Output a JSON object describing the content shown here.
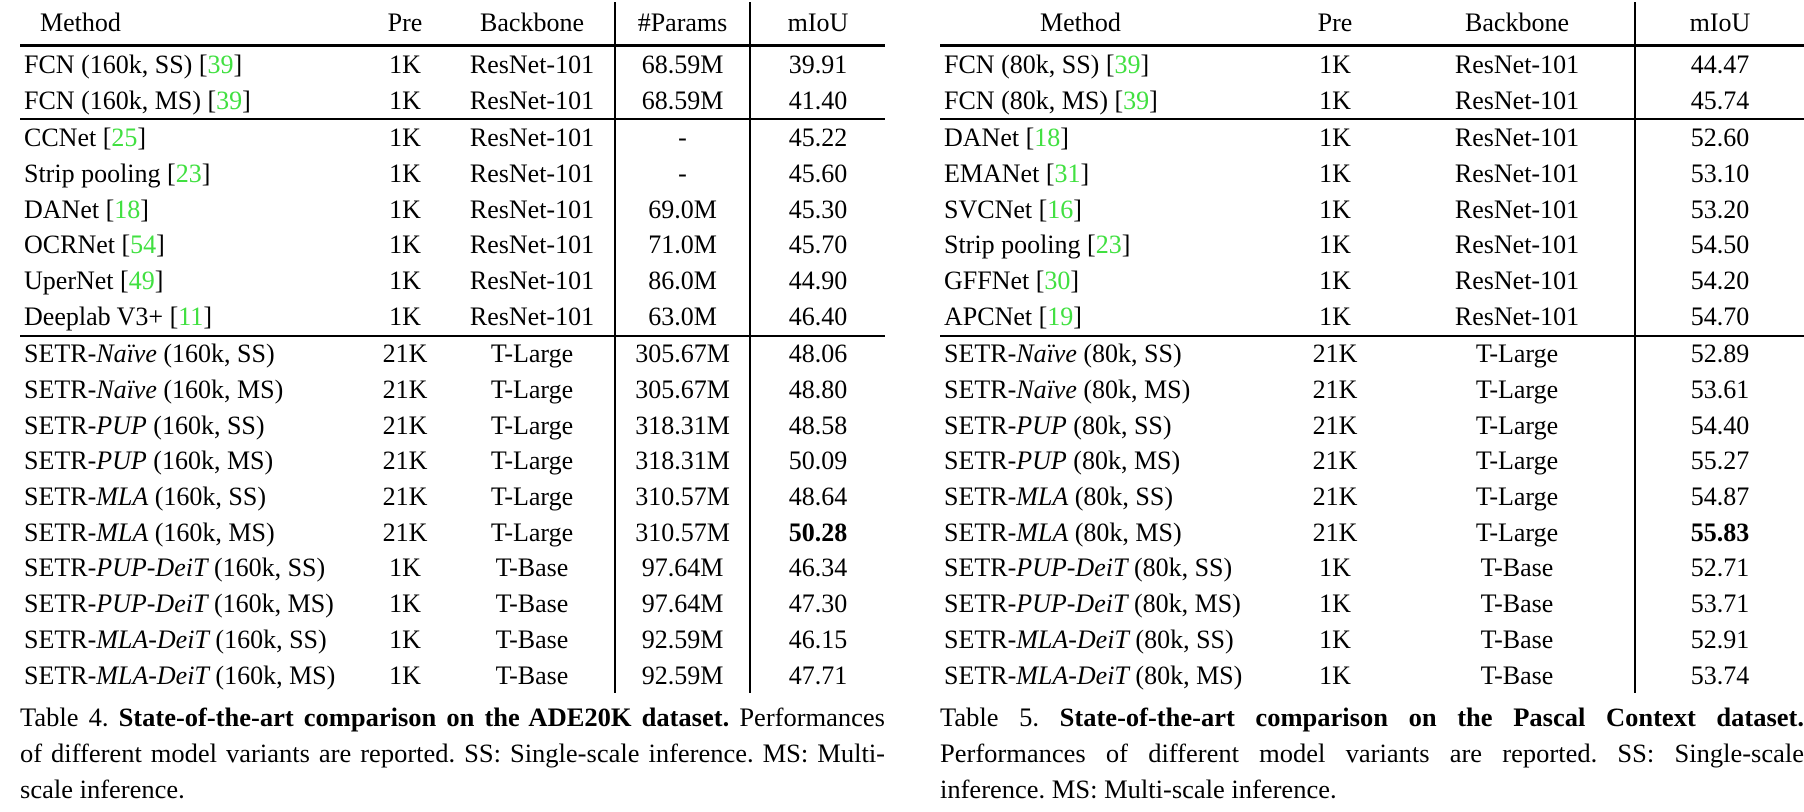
{
  "colors": {
    "citation_green": "#41e041",
    "text": "#000000",
    "background": "#ffffff"
  },
  "table4": {
    "header": {
      "method": "Method",
      "pre": "Pre",
      "backbone": "Backbone",
      "params": "#Params",
      "miou": "mIoU"
    },
    "rows": [
      {
        "m1": "FCN (160k, SS) ",
        "m2": "",
        "m3": "",
        "cite": "39",
        "pre": "1K",
        "backbone": "ResNet-101",
        "params": "68.59M",
        "miou": "39.91",
        "sep": false,
        "bold": false
      },
      {
        "m1": "FCN (160k, MS) ",
        "m2": "",
        "m3": "",
        "cite": "39",
        "pre": "1K",
        "backbone": "ResNet-101",
        "params": "68.59M",
        "miou": "41.40",
        "sep": false,
        "bold": false
      },
      {
        "m1": "CCNet ",
        "m2": "",
        "m3": "",
        "cite": "25",
        "pre": "1K",
        "backbone": "ResNet-101",
        "params": "-",
        "miou": "45.22",
        "sep": true,
        "bold": false
      },
      {
        "m1": "Strip pooling ",
        "m2": "",
        "m3": "",
        "cite": "23",
        "pre": "1K",
        "backbone": "ResNet-101",
        "params": "-",
        "miou": "45.60",
        "sep": false,
        "bold": false
      },
      {
        "m1": "DANet ",
        "m2": "",
        "m3": "",
        "cite": "18",
        "pre": "1K",
        "backbone": "ResNet-101",
        "params": "69.0M",
        "miou": "45.30",
        "sep": false,
        "bold": false
      },
      {
        "m1": "OCRNet ",
        "m2": "",
        "m3": "",
        "cite": "54",
        "pre": "1K",
        "backbone": "ResNet-101",
        "params": "71.0M",
        "miou": "45.70",
        "sep": false,
        "bold": false
      },
      {
        "m1": "UperNet ",
        "m2": "",
        "m3": "",
        "cite": "49",
        "pre": "1K",
        "backbone": "ResNet-101",
        "params": "86.0M",
        "miou": "44.90",
        "sep": false,
        "bold": false
      },
      {
        "m1": "Deeplab V3+ ",
        "m2": "",
        "m3": "",
        "cite": "11",
        "pre": "1K",
        "backbone": "ResNet-101",
        "params": "63.0M",
        "miou": "46.40",
        "sep": false,
        "bold": false
      },
      {
        "m1": "SETR-",
        "m2": "Naïve",
        "m3": " (160k, SS)",
        "cite": "",
        "pre": "21K",
        "backbone": "T-Large",
        "params": "305.67M",
        "miou": "48.06",
        "sep": true,
        "bold": false
      },
      {
        "m1": "SETR-",
        "m2": "Naïve",
        "m3": " (160k, MS)",
        "cite": "",
        "pre": "21K",
        "backbone": "T-Large",
        "params": "305.67M",
        "miou": "48.80",
        "sep": false,
        "bold": false
      },
      {
        "m1": "SETR-",
        "m2": "PUP",
        "m3": " (160k, SS)",
        "cite": "",
        "pre": "21K",
        "backbone": "T-Large",
        "params": "318.31M",
        "miou": "48.58",
        "sep": false,
        "bold": false
      },
      {
        "m1": "SETR-",
        "m2": "PUP",
        "m3": " (160k, MS)",
        "cite": "",
        "pre": "21K",
        "backbone": "T-Large",
        "params": "318.31M",
        "miou": "50.09",
        "sep": false,
        "bold": false
      },
      {
        "m1": "SETR-",
        "m2": "MLA",
        "m3": " (160k, SS)",
        "cite": "",
        "pre": "21K",
        "backbone": "T-Large",
        "params": "310.57M",
        "miou": "48.64",
        "sep": false,
        "bold": false
      },
      {
        "m1": "SETR-",
        "m2": "MLA",
        "m3": " (160k, MS)",
        "cite": "",
        "pre": "21K",
        "backbone": "T-Large",
        "params": "310.57M",
        "miou": "50.28",
        "sep": false,
        "bold": true
      },
      {
        "m1": "SETR-",
        "m2": "PUP-DeiT",
        "m3": " (160k, SS)",
        "cite": "",
        "pre": "1K",
        "backbone": "T-Base",
        "params": "97.64M",
        "miou": "46.34",
        "sep": false,
        "bold": false
      },
      {
        "m1": "SETR-",
        "m2": "PUP-DeiT",
        "m3": " (160k, MS)",
        "cite": "",
        "pre": "1K",
        "backbone": "T-Base",
        "params": "97.64M",
        "miou": "47.30",
        "sep": false,
        "bold": false
      },
      {
        "m1": "SETR-",
        "m2": "MLA-DeiT",
        "m3": " (160k, SS)",
        "cite": "",
        "pre": "1K",
        "backbone": "T-Base",
        "params": "92.59M",
        "miou": "46.15",
        "sep": false,
        "bold": false
      },
      {
        "m1": "SETR-",
        "m2": "MLA-DeiT",
        "m3": " (160k, MS)",
        "cite": "",
        "pre": "1K",
        "backbone": "T-Base",
        "params": "92.59M",
        "miou": "47.71",
        "sep": false,
        "bold": false
      }
    ],
    "caption": {
      "label": "Table 4.",
      "bold": "State-of-the-art comparison on the ADE20K dataset.",
      "rest": "Performances of different model variants are reported. SS: Single-scale inference. MS: Multi-scale inference."
    }
  },
  "table5": {
    "header": {
      "method": "Method",
      "pre": "Pre",
      "backbone": "Backbone",
      "miou": "mIoU"
    },
    "rows": [
      {
        "m1": "FCN (80k, SS) ",
        "m2": "",
        "m3": "",
        "cite": "39",
        "pre": "1K",
        "backbone": "ResNet-101",
        "miou": "44.47",
        "sep": false,
        "bold": false
      },
      {
        "m1": "FCN (80k, MS) ",
        "m2": "",
        "m3": "",
        "cite": "39",
        "pre": "1K",
        "backbone": "ResNet-101",
        "miou": "45.74",
        "sep": false,
        "bold": false
      },
      {
        "m1": "DANet ",
        "m2": "",
        "m3": "",
        "cite": "18",
        "pre": "1K",
        "backbone": "ResNet-101",
        "miou": "52.60",
        "sep": true,
        "bold": false
      },
      {
        "m1": "EMANet ",
        "m2": "",
        "m3": "",
        "cite": "31",
        "pre": "1K",
        "backbone": "ResNet-101",
        "miou": "53.10",
        "sep": false,
        "bold": false
      },
      {
        "m1": "SVCNet ",
        "m2": "",
        "m3": "",
        "cite": "16",
        "pre": "1K",
        "backbone": "ResNet-101",
        "miou": "53.20",
        "sep": false,
        "bold": false
      },
      {
        "m1": "Strip pooling ",
        "m2": "",
        "m3": "",
        "cite": "23",
        "pre": "1K",
        "backbone": "ResNet-101",
        "miou": "54.50",
        "sep": false,
        "bold": false
      },
      {
        "m1": "GFFNet ",
        "m2": "",
        "m3": "",
        "cite": "30",
        "pre": "1K",
        "backbone": "ResNet-101",
        "miou": "54.20",
        "sep": false,
        "bold": false
      },
      {
        "m1": "APCNet ",
        "m2": "",
        "m3": "",
        "cite": "19",
        "pre": "1K",
        "backbone": "ResNet-101",
        "miou": "54.70",
        "sep": false,
        "bold": false
      },
      {
        "m1": "SETR-",
        "m2": "Naïve",
        "m3": " (80k, SS)",
        "cite": "",
        "pre": "21K",
        "backbone": "T-Large",
        "miou": "52.89",
        "sep": true,
        "bold": false
      },
      {
        "m1": "SETR-",
        "m2": "Naïve",
        "m3": " (80k, MS)",
        "cite": "",
        "pre": "21K",
        "backbone": "T-Large",
        "miou": "53.61",
        "sep": false,
        "bold": false
      },
      {
        "m1": "SETR-",
        "m2": "PUP",
        "m3": " (80k, SS)",
        "cite": "",
        "pre": "21K",
        "backbone": "T-Large",
        "miou": "54.40",
        "sep": false,
        "bold": false
      },
      {
        "m1": "SETR-",
        "m2": "PUP",
        "m3": " (80k, MS)",
        "cite": "",
        "pre": "21K",
        "backbone": "T-Large",
        "miou": "55.27",
        "sep": false,
        "bold": false
      },
      {
        "m1": "SETR-",
        "m2": "MLA",
        "m3": " (80k, SS)",
        "cite": "",
        "pre": "21K",
        "backbone": "T-Large",
        "miou": "54.87",
        "sep": false,
        "bold": false
      },
      {
        "m1": "SETR-",
        "m2": "MLA",
        "m3": " (80k, MS)",
        "cite": "",
        "pre": "21K",
        "backbone": "T-Large",
        "miou": "55.83",
        "sep": false,
        "bold": true
      },
      {
        "m1": "SETR-",
        "m2": "PUP-DeiT",
        "m3": " (80k, SS)",
        "cite": "",
        "pre": "1K",
        "backbone": "T-Base",
        "miou": "52.71",
        "sep": false,
        "bold": false
      },
      {
        "m1": "SETR-",
        "m2": "PUP-DeiT",
        "m3": " (80k, MS)",
        "cite": "",
        "pre": "1K",
        "backbone": "T-Base",
        "miou": "53.71",
        "sep": false,
        "bold": false
      },
      {
        "m1": "SETR-",
        "m2": "MLA-DeiT",
        "m3": " (80k, SS)",
        "cite": "",
        "pre": "1K",
        "backbone": "T-Base",
        "miou": "52.91",
        "sep": false,
        "bold": false
      },
      {
        "m1": "SETR-",
        "m2": "MLA-DeiT",
        "m3": " (80k, MS)",
        "cite": "",
        "pre": "1K",
        "backbone": "T-Base",
        "miou": "53.74",
        "sep": false,
        "bold": false
      }
    ],
    "caption": {
      "label": "Table 5.",
      "bold": "State-of-the-art comparison on the Pascal Context dataset.",
      "rest": "Performances of different model variants are reported. SS: Single-scale inference. MS: Multi-scale inference."
    }
  }
}
